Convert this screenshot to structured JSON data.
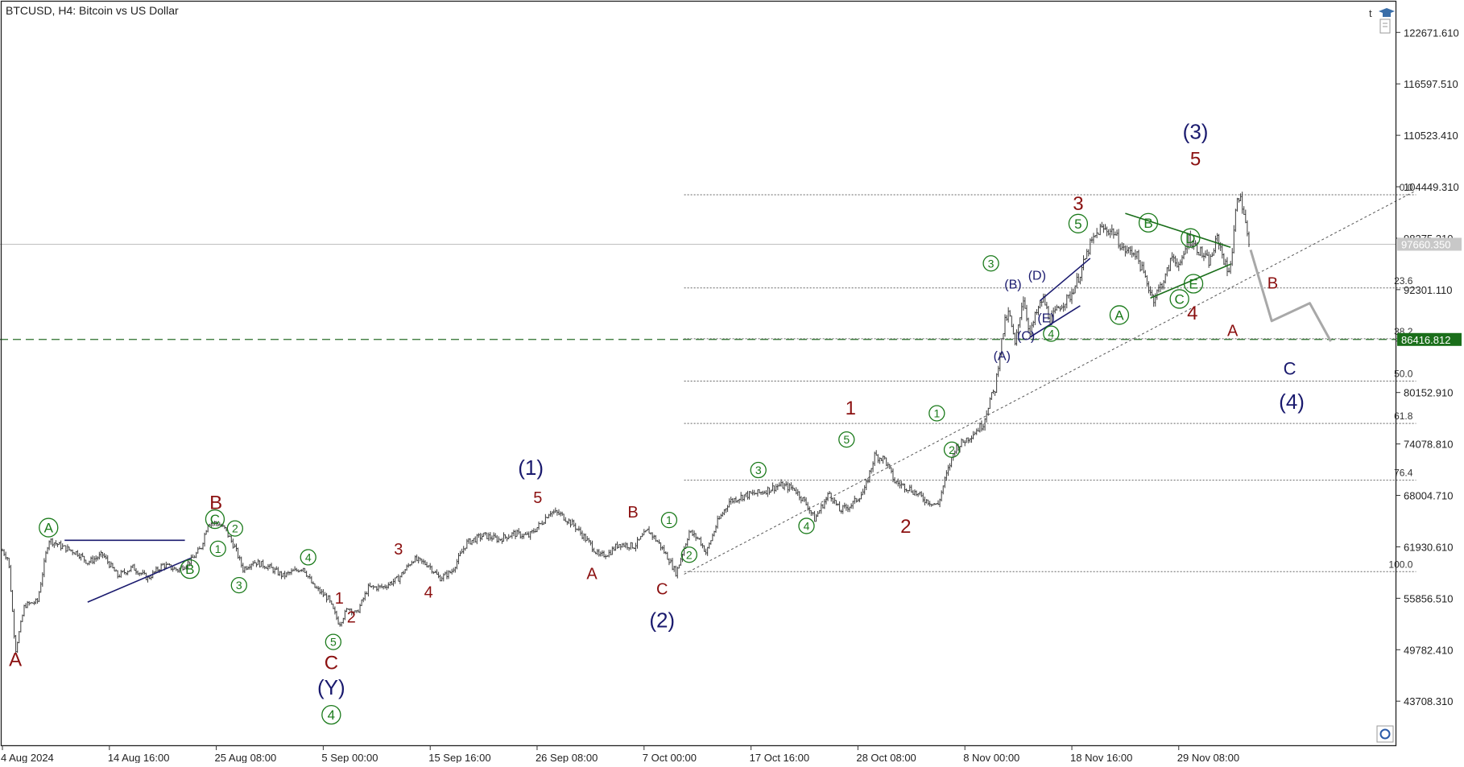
{
  "chart_data": {
    "type": "candlestick",
    "title": "BTCUSD, H4:  Bitcoin vs US Dollar",
    "xlabel": "",
    "ylabel": "",
    "ylim": [
      38500,
      126500
    ],
    "y_ticks": [
      122671.61,
      116597.51,
      110523.41,
      104449.31,
      98375.21,
      92301.11,
      86227.01,
      80152.91,
      74078.81,
      68004.71,
      61930.61,
      55856.51,
      49782.41,
      43708.31
    ],
    "y_tick_labels": [
      "122671.610",
      "116597.510",
      "110523.410",
      "104449.310",
      "98375.210",
      "92301.110",
      "",
      "80152.910",
      "74078.810",
      "68004.710",
      "61930.610",
      "55856.510",
      "49782.410",
      "43708.310"
    ],
    "x_ticks": [
      {
        "t": 0,
        "label": "4 Aug 2024"
      },
      {
        "t": 10.67,
        "label": "14 Aug 16:00"
      },
      {
        "t": 21.33,
        "label": "25 Aug 08:00"
      },
      {
        "t": 32,
        "label": "5 Sep 00:00"
      },
      {
        "t": 42.67,
        "label": "15 Sep 16:00"
      },
      {
        "t": 53.33,
        "label": "26 Sep 08:00"
      },
      {
        "t": 64,
        "label": "7 Oct 00:00"
      },
      {
        "t": 74.67,
        "label": "17 Oct 16:00"
      },
      {
        "t": 85.33,
        "label": "28 Oct 08:00"
      },
      {
        "t": 96,
        "label": "8 Nov 00:00"
      },
      {
        "t": 106.67,
        "label": "18 Nov 16:00"
      },
      {
        "t": 117.33,
        "label": "29 Nov 08:00"
      }
    ],
    "x_range": [
      0,
      143
    ],
    "price_path": [
      [
        0,
        61500
      ],
      [
        0.6,
        60500
      ],
      [
        1.3,
        49600
      ],
      [
        2.2,
        55000
      ],
      [
        3.5,
        55500
      ],
      [
        4.6,
        62800
      ],
      [
        6,
        61900
      ],
      [
        7.5,
        61200
      ],
      [
        8.5,
        60100
      ],
      [
        10,
        61000
      ],
      [
        11.5,
        58500
      ],
      [
        13,
        59500
      ],
      [
        14.5,
        58200
      ],
      [
        16,
        59800
      ],
      [
        17.5,
        59200
      ],
      [
        18.8,
        60300
      ],
      [
        19.8,
        61800
      ],
      [
        20.5,
        64800
      ],
      [
        21.5,
        64700
      ],
      [
        22.2,
        64000
      ],
      [
        23.2,
        61800
      ],
      [
        24,
        59300
      ],
      [
        25,
        60200
      ],
      [
        26.5,
        59600
      ],
      [
        28,
        58500
      ],
      [
        30,
        59500
      ],
      [
        31,
        57300
      ],
      [
        32.5,
        55800
      ],
      [
        33.6,
        52800
      ],
      [
        34.5,
        54800
      ],
      [
        35.3,
        54000
      ],
      [
        36.5,
        57100
      ],
      [
        38,
        57200
      ],
      [
        39.5,
        58200
      ],
      [
        41,
        60500
      ],
      [
        42.5,
        59800
      ],
      [
        43.6,
        58200
      ],
      [
        44.8,
        59000
      ],
      [
        46.3,
        62400
      ],
      [
        48,
        63300
      ],
      [
        49.5,
        62800
      ],
      [
        51,
        63500
      ],
      [
        52.5,
        63200
      ],
      [
        53.8,
        64800
      ],
      [
        54.6,
        66100
      ],
      [
        55.6,
        65800
      ],
      [
        57,
        64500
      ],
      [
        58.8,
        62000
      ],
      [
        59.5,
        60800
      ],
      [
        60.5,
        61200
      ],
      [
        61.5,
        62300
      ],
      [
        63,
        62000
      ],
      [
        64.4,
        63900
      ],
      [
        65.5,
        62300
      ],
      [
        66.5,
        60400
      ],
      [
        67.2,
        58800
      ],
      [
        68.5,
        63700
      ],
      [
        69.5,
        62800
      ],
      [
        70.2,
        61200
      ],
      [
        71.3,
        64800
      ],
      [
        72.5,
        67300
      ],
      [
        74,
        68000
      ],
      [
        75.5,
        68300
      ],
      [
        77.5,
        69200
      ],
      [
        79,
        68800
      ],
      [
        80.3,
        66800
      ],
      [
        81,
        65200
      ],
      [
        82.5,
        68300
      ],
      [
        83.5,
        66200
      ],
      [
        84.7,
        66900
      ],
      [
        86,
        68600
      ],
      [
        87,
        72700
      ],
      [
        88,
        72300
      ],
      [
        89,
        69600
      ],
      [
        90.5,
        68800
      ],
      [
        92,
        67500
      ],
      [
        93.3,
        66800
      ],
      [
        94,
        69800
      ],
      [
        95,
        73500
      ],
      [
        96.5,
        75000
      ],
      [
        97.8,
        76400
      ],
      [
        98.5,
        79300
      ],
      [
        99,
        80500
      ],
      [
        99.5,
        85000
      ],
      [
        100,
        88500
      ],
      [
        100.4,
        89600
      ],
      [
        101,
        85700
      ],
      [
        101.8,
        91500
      ],
      [
        102.5,
        87000
      ],
      [
        103,
        89100
      ],
      [
        103.8,
        91300
      ],
      [
        104.5,
        88700
      ],
      [
        105.5,
        90400
      ],
      [
        106.5,
        91500
      ],
      [
        107.5,
        94200
      ],
      [
        108.5,
        97600
      ],
      [
        109.5,
        99500
      ],
      [
        110.8,
        99200
      ],
      [
        111.8,
        97000
      ],
      [
        113,
        96700
      ],
      [
        114.2,
        93000
      ],
      [
        114.8,
        91200
      ],
      [
        116,
        93800
      ],
      [
        116.7,
        96300
      ],
      [
        117.5,
        95000
      ],
      [
        118.3,
        98400
      ],
      [
        119.3,
        97000
      ],
      [
        120.4,
        95500
      ],
      [
        121.2,
        98500
      ],
      [
        122.2,
        94300
      ],
      [
        122.6,
        96000
      ],
      [
        123.2,
        103900
      ],
      [
        123.8,
        101700
      ],
      [
        124.4,
        96700
      ]
    ],
    "fibonacci": {
      "levels": [
        {
          "ratio": "0.0",
          "price": 103500
        },
        {
          "ratio": "23.6",
          "price": 92500
        },
        {
          "ratio": "38.2",
          "price": 86500
        },
        {
          "ratio": "50.0",
          "price": 81500
        },
        {
          "ratio": "61.8",
          "price": 76500
        },
        {
          "ratio": "76.4",
          "price": 69800
        },
        {
          "ratio": "100.0",
          "price": 59000
        }
      ],
      "start_t": 68,
      "end_t": 141
    },
    "current_price": {
      "label": "97660.350",
      "price": 97660.35
    },
    "level_price": {
      "label": "86416.812",
      "price": 86416.812
    },
    "trend_line": [
      [
        68,
        58700
      ],
      [
        141,
        104000
      ]
    ],
    "forecast_path": [
      [
        124.5,
        97000
      ],
      [
        126.6,
        88600
      ],
      [
        130.4,
        90700
      ],
      [
        132.5,
        86200
      ]
    ],
    "channels": [
      {
        "color": "#1a1a6e",
        "points": [
          [
            6.2,
            62700
          ],
          [
            18.2,
            62700
          ]
        ]
      },
      {
        "color": "#1a1a6e",
        "points": [
          [
            8.5,
            55400
          ],
          [
            18.8,
            60600
          ]
        ]
      },
      {
        "color": "#1a1a6e",
        "points": [
          [
            103.5,
            91000
          ],
          [
            108.5,
            96000
          ]
        ]
      },
      {
        "color": "#1a1a6e",
        "points": [
          [
            102.5,
            86700
          ],
          [
            107.5,
            90400
          ]
        ]
      },
      {
        "color": "#1a6e1a",
        "points": [
          [
            112,
            101300
          ],
          [
            122.5,
            97300
          ]
        ]
      },
      {
        "color": "#1a6e1a",
        "points": [
          [
            114.5,
            91300
          ],
          [
            122.5,
            95300
          ]
        ]
      }
    ],
    "wave_labels": [
      {
        "text": "A",
        "t": 1.3,
        "price": 48700,
        "style": "red"
      },
      {
        "text": "A",
        "t": 4.6,
        "price": 64200,
        "style": "green-circle"
      },
      {
        "text": "B",
        "t": 18.7,
        "price": 59300,
        "style": "green-circle"
      },
      {
        "text": "B",
        "t": 21.3,
        "price": 67200,
        "style": "red"
      },
      {
        "text": "C",
        "t": 21.2,
        "price": 65200,
        "style": "green-circle"
      },
      {
        "text": "2",
        "t": 23.2,
        "price": 64100,
        "style": "green-small"
      },
      {
        "text": "1",
        "t": 21.5,
        "price": 61700,
        "style": "green-small"
      },
      {
        "text": "3",
        "t": 23.6,
        "price": 57400,
        "style": "green-small"
      },
      {
        "text": "4",
        "t": 30.5,
        "price": 60700,
        "style": "green-small"
      },
      {
        "text": "1",
        "t": 33.6,
        "price": 55900,
        "style": "red-small"
      },
      {
        "text": "5",
        "t": 33,
        "price": 50700,
        "style": "green-small"
      },
      {
        "text": "2",
        "t": 34.8,
        "price": 53700,
        "style": "red-small"
      },
      {
        "text": "C",
        "t": 32.8,
        "price": 48300,
        "style": "red"
      },
      {
        "text": "(Y)",
        "t": 32.8,
        "price": 45400,
        "style": "navy"
      },
      {
        "text": "4",
        "t": 32.8,
        "price": 42100,
        "style": "green-circle"
      },
      {
        "text": "3",
        "t": 39.5,
        "price": 61700,
        "style": "red-small"
      },
      {
        "text": "4",
        "t": 42.5,
        "price": 56600,
        "style": "red-small"
      },
      {
        "text": "(1)",
        "t": 52.7,
        "price": 71300,
        "style": "navy"
      },
      {
        "text": "5",
        "t": 53.4,
        "price": 67800,
        "style": "red-small"
      },
      {
        "text": "A",
        "t": 58.8,
        "price": 58800,
        "style": "red-small"
      },
      {
        "text": "B",
        "t": 62.9,
        "price": 66100,
        "style": "red-small"
      },
      {
        "text": "C",
        "t": 65.8,
        "price": 57000,
        "style": "red-small"
      },
      {
        "text": "(2)",
        "t": 65.8,
        "price": 53300,
        "style": "navy"
      },
      {
        "text": "1",
        "t": 66.5,
        "price": 65100,
        "style": "green-small"
      },
      {
        "text": "2",
        "t": 68.5,
        "price": 61000,
        "style": "green-small"
      },
      {
        "text": "3",
        "t": 75.4,
        "price": 71000,
        "style": "green-small"
      },
      {
        "text": "4",
        "t": 80.2,
        "price": 64400,
        "style": "green-small"
      },
      {
        "text": "1",
        "t": 84.6,
        "price": 78400,
        "style": "red"
      },
      {
        "text": "5",
        "t": 84.2,
        "price": 74600,
        "style": "green-small"
      },
      {
        "text": "2",
        "t": 90.1,
        "price": 64400,
        "style": "red"
      },
      {
        "text": "1",
        "t": 93.2,
        "price": 77700,
        "style": "green-small"
      },
      {
        "text": "2",
        "t": 94.7,
        "price": 73400,
        "style": "green-small"
      },
      {
        "text": "3",
        "t": 98.6,
        "price": 95400,
        "style": "green-small"
      },
      {
        "text": "(B)",
        "t": 100.8,
        "price": 93000,
        "style": "navy-small"
      },
      {
        "text": "(D)",
        "t": 103.2,
        "price": 94000,
        "style": "navy-small"
      },
      {
        "text": "(E)",
        "t": 104.1,
        "price": 89000,
        "style": "navy-small"
      },
      {
        "text": "(C)",
        "t": 102.1,
        "price": 86900,
        "style": "navy-small"
      },
      {
        "text": "4",
        "t": 104.6,
        "price": 87100,
        "style": "green-small"
      },
      {
        "text": "(A)",
        "t": 99.7,
        "price": 84500,
        "style": "navy-small"
      },
      {
        "text": "3",
        "t": 107.3,
        "price": 102500,
        "style": "red"
      },
      {
        "text": "5",
        "t": 107.3,
        "price": 100100,
        "style": "green-circle"
      },
      {
        "text": "B",
        "t": 114.3,
        "price": 100200,
        "style": "green-circle"
      },
      {
        "text": "A",
        "t": 111.4,
        "price": 89300,
        "style": "green-circle"
      },
      {
        "text": "D",
        "t": 118.5,
        "price": 98400,
        "style": "green-circle"
      },
      {
        "text": "E",
        "t": 118.8,
        "price": 93000,
        "style": "green-circle"
      },
      {
        "text": "C",
        "t": 117.4,
        "price": 91200,
        "style": "green-circle"
      },
      {
        "text": "4",
        "t": 118.7,
        "price": 89600,
        "style": "red"
      },
      {
        "text": "5",
        "t": 119,
        "price": 107800,
        "style": "red"
      },
      {
        "text": "(3)",
        "t": 119,
        "price": 111000,
        "style": "navy"
      },
      {
        "text": "A",
        "t": 122.7,
        "price": 87500,
        "style": "red-small"
      },
      {
        "text": "B",
        "t": 126.7,
        "price": 93100,
        "style": "red-small"
      },
      {
        "text": "C",
        "t": 128.4,
        "price": 83000,
        "style": "navy-mid"
      },
      {
        "text": "(4)",
        "t": 128.6,
        "price": 79100,
        "style": "navy"
      }
    ]
  },
  "colors": {
    "candle": "#3a3a3a",
    "red": "#8b1010",
    "green": "#1a7a1a",
    "navy": "#1a1a6e",
    "grid_dots": "#666666",
    "forecast": "#a8a8a8",
    "level_bg": "#1a6e1a",
    "current_bg": "#c8c8c8"
  },
  "icons": [
    "graduation-cap-icon",
    "document-icon",
    "options-icon"
  ]
}
